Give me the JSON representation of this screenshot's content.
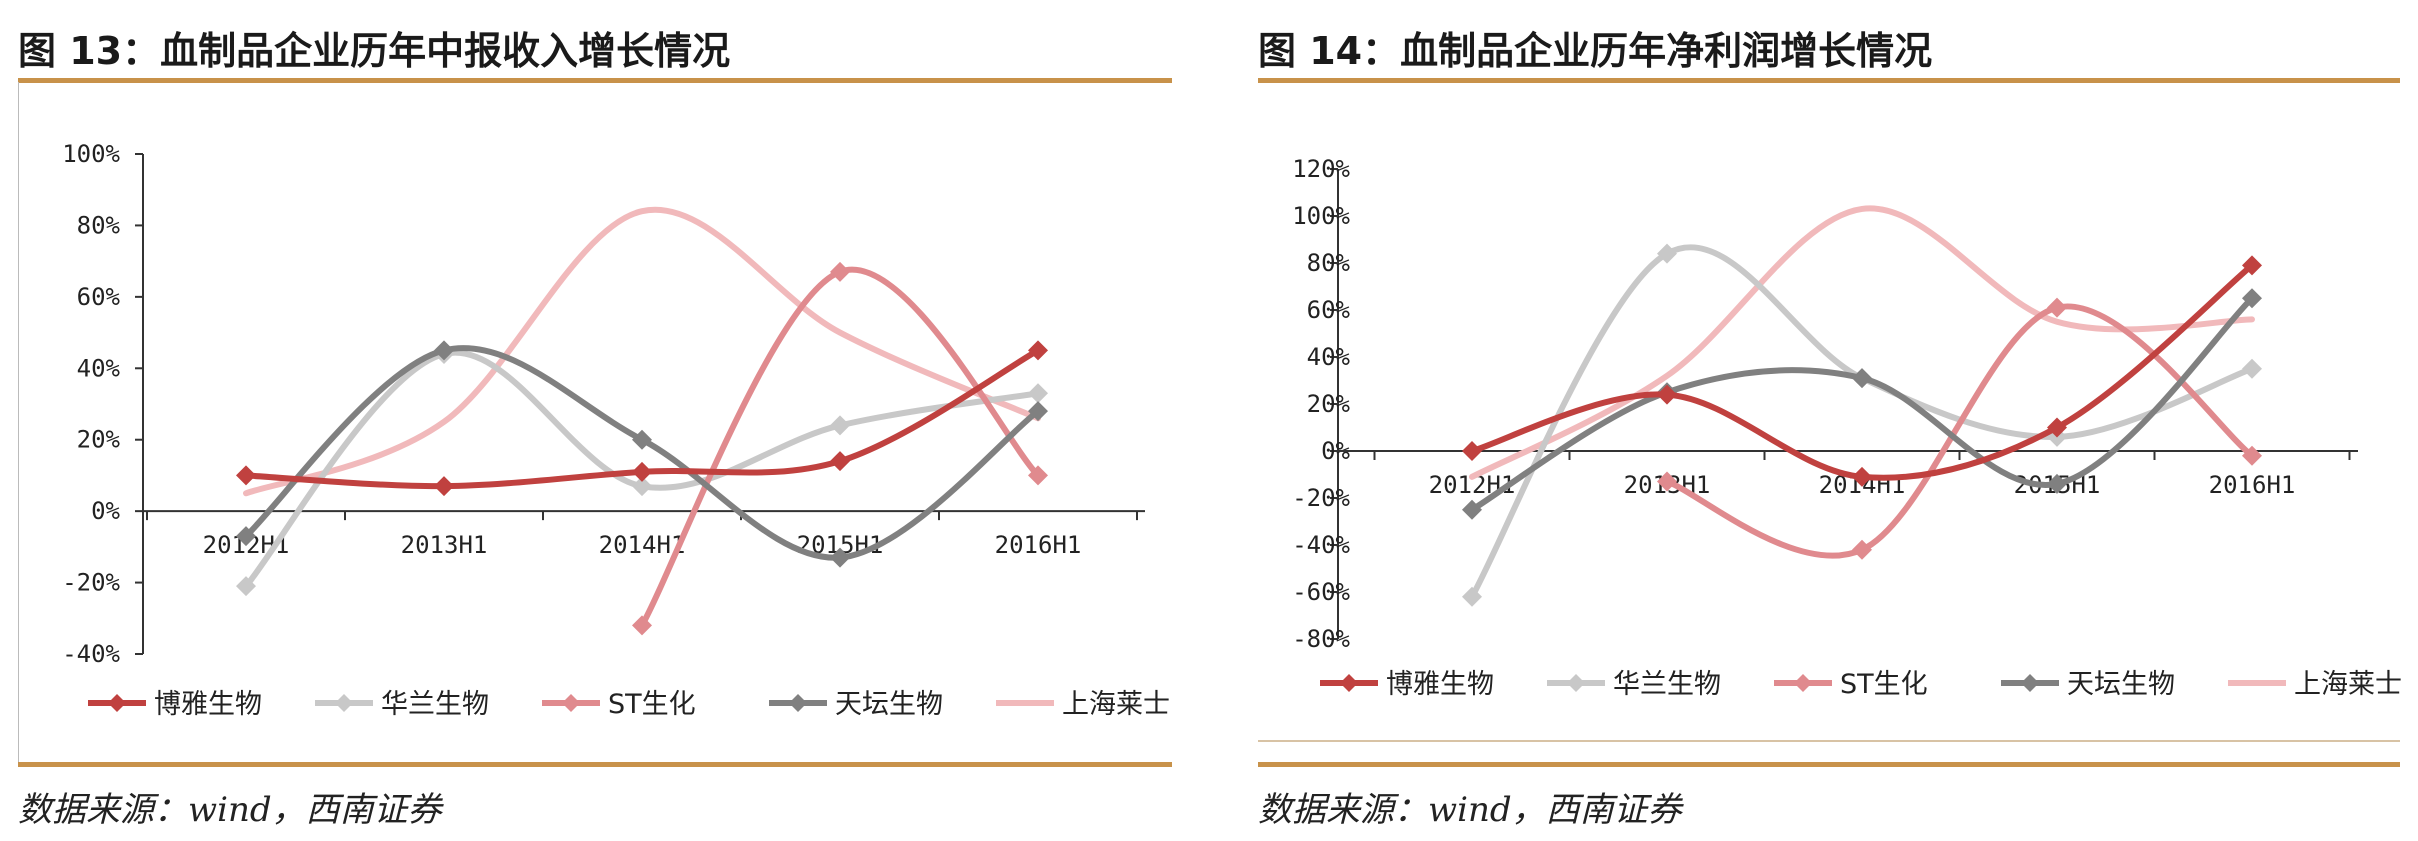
{
  "source_label": "数据来源：wind，西南证券",
  "chart_data": [
    {
      "type": "line",
      "title": "图 13：血制品企业历年中报收入增长情况",
      "categories": [
        "2012H1",
        "2013H1",
        "2014H1",
        "2015H1",
        "2016H1"
      ],
      "ylim": [
        -40,
        100
      ],
      "yticks": [
        "100%",
        "80%",
        "60%",
        "40%",
        "20%",
        "0%",
        "-20%",
        "-40%"
      ],
      "ytick_values": [
        100,
        80,
        60,
        40,
        20,
        0,
        -20,
        -40
      ],
      "legend_position": "bottom",
      "series": [
        {
          "name": "博雅生物",
          "color": "#c0413f",
          "marker": "diamond",
          "values": [
            10,
            7,
            11,
            14,
            45
          ]
        },
        {
          "name": "华兰生物",
          "color": "#c8c8c8",
          "marker": "diamond",
          "values": [
            -21,
            44,
            7,
            24,
            33
          ]
        },
        {
          "name": "ST生化",
          "color": "#e08a8e",
          "marker": "diamond",
          "values": [
            null,
            null,
            -32,
            67,
            10
          ]
        },
        {
          "name": "天坛生物",
          "color": "#808080",
          "marker": "diamond",
          "values": [
            -7,
            45,
            20,
            -13,
            28
          ]
        },
        {
          "name": "上海莱士",
          "color": "#f1b9bb",
          "marker": "none",
          "values": [
            5,
            25,
            84,
            50,
            26
          ]
        }
      ]
    },
    {
      "type": "line",
      "title": "图 14：血制品企业历年净利润增长情况",
      "categories": [
        "2012H1",
        "2013H1",
        "2014H1",
        "2015H1",
        "2016H1"
      ],
      "ylim": [
        -80,
        120
      ],
      "yticks": [
        "120%",
        "100%",
        "80%",
        "60%",
        "40%",
        "20%",
        "0%",
        "-20%",
        "-40%",
        "-60%",
        "-80%"
      ],
      "ytick_values": [
        120,
        100,
        80,
        60,
        40,
        20,
        0,
        -20,
        -40,
        -60,
        -80
      ],
      "legend_position": "bottom",
      "series": [
        {
          "name": "博雅生物",
          "color": "#c0413f",
          "marker": "diamond",
          "values": [
            0,
            24,
            -11,
            10,
            79
          ]
        },
        {
          "name": "华兰生物",
          "color": "#c8c8c8",
          "marker": "diamond",
          "values": [
            -62,
            84,
            31,
            6,
            35
          ]
        },
        {
          "name": "ST生化",
          "color": "#e08a8e",
          "marker": "diamond",
          "values": [
            null,
            -13,
            -42,
            61,
            -2
          ]
        },
        {
          "name": "天坛生物",
          "color": "#808080",
          "marker": "diamond",
          "values": [
            -25,
            25,
            31,
            -14,
            65
          ]
        },
        {
          "name": "上海莱士",
          "color": "#f1b9bb",
          "marker": "none",
          "values": [
            -11,
            32,
            103,
            55,
            56
          ]
        }
      ]
    }
  ]
}
